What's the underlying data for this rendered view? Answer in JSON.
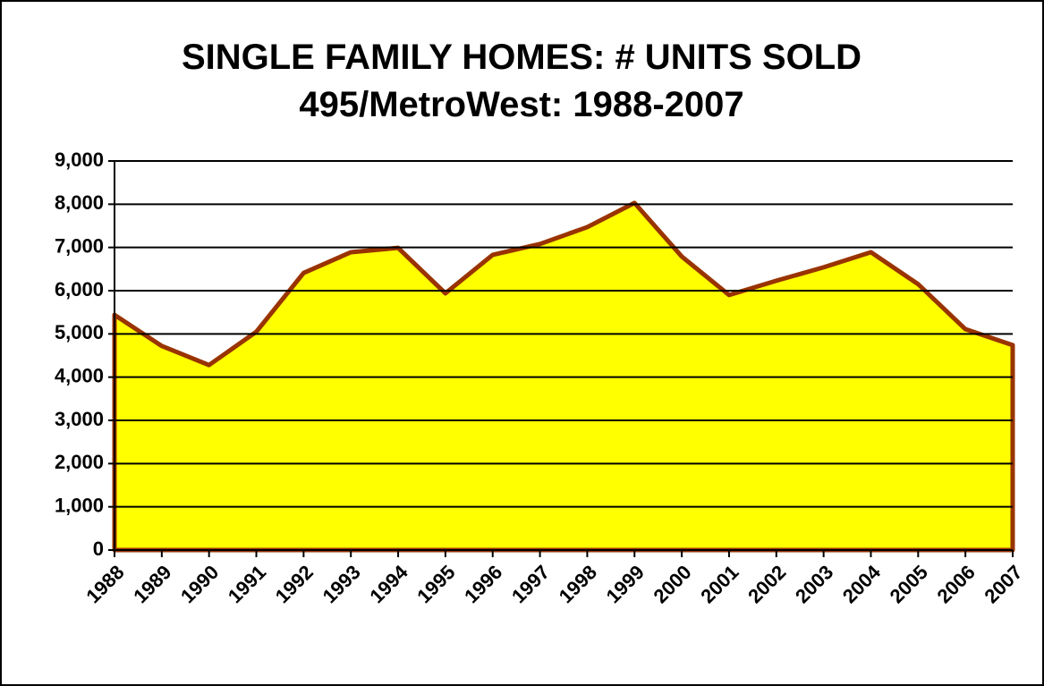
{
  "chart_data": {
    "type": "area",
    "title": "SINGLE FAMILY HOMES: # UNITS SOLD",
    "subtitle": "495/MetroWest: 1988-2007",
    "categories": [
      "1988",
      "1989",
      "1990",
      "1991",
      "1992",
      "1993",
      "1994",
      "1995",
      "1996",
      "1997",
      "1998",
      "1999",
      "2000",
      "2001",
      "2002",
      "2003",
      "2004",
      "2005",
      "2006",
      "2007"
    ],
    "values": [
      5440,
      4720,
      4280,
      5050,
      6410,
      6890,
      6990,
      5940,
      6830,
      7080,
      7470,
      8030,
      6790,
      5900,
      6230,
      6540,
      6890,
      6150,
      5110,
      4740
    ],
    "color": "#ffff00",
    "line_color": "#993300",
    "ylim": [
      0,
      9000
    ],
    "yticks": [
      0,
      {
        "value": 1000,
        "label": "1,000"
      },
      {
        "value": 2000,
        "label": "2,000"
      },
      {
        "value": 3000,
        "label": "3,000"
      },
      {
        "value": 4000,
        "label": "4,000"
      },
      {
        "value": 5000,
        "label": "5,000"
      },
      {
        "value": 6000,
        "label": "6,000"
      },
      {
        "value": 7000,
        "label": "7,000"
      },
      {
        "value": 8000,
        "label": "8,000"
      },
      {
        "value": 9000,
        "label": "9,000"
      }
    ],
    "grid": true
  }
}
